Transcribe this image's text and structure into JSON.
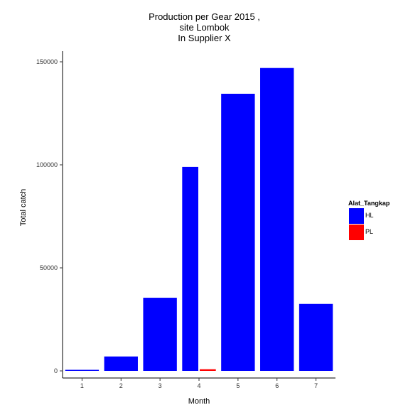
{
  "chart_data": {
    "type": "bar",
    "title_lines": [
      "Production per Gear  2015 ,",
      "site  Lombok",
      "In Supplier  X"
    ],
    "xlabel": "Month",
    "ylabel": "Total catch",
    "ylim": [
      0,
      150000
    ],
    "y_ticks": [
      0,
      50000,
      100000,
      150000
    ],
    "y_tick_labels": [
      "0",
      "50000",
      "100000",
      "150000"
    ],
    "categories": [
      "1",
      "2",
      "3",
      "4",
      "5",
      "6",
      "7"
    ],
    "legend": {
      "title": "Alat_Tangkap",
      "placement": "right",
      "entries": [
        {
          "name": "HL",
          "color": "#0000ff"
        },
        {
          "name": "PL",
          "color": "#ff0000"
        }
      ]
    },
    "series": [
      {
        "name": "HL",
        "color": "#0000ff",
        "values": [
          500,
          7000,
          35500,
          99000,
          134500,
          147000,
          32500
        ]
      },
      {
        "name": "PL",
        "color": "#ff0000",
        "values": [
          null,
          null,
          null,
          800,
          null,
          null,
          null
        ]
      }
    ],
    "grid": false
  }
}
